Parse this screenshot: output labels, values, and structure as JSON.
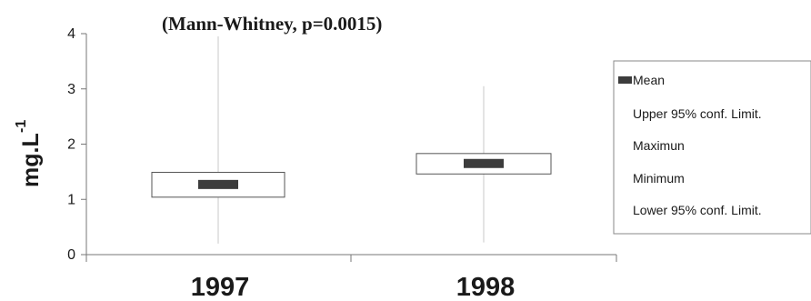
{
  "chart_data": {
    "type": "box",
    "title": "(Mann-Whitney, p=0.0015)",
    "ylabel": "mg.L",
    "ylabel_exponent": "-1",
    "ylim": [
      0,
      4
    ],
    "yticks": [
      "0",
      "1",
      "2",
      "3",
      "4"
    ],
    "categories": [
      "1997",
      "1998"
    ],
    "boxes": [
      {
        "category": "1997",
        "mean": 1.27,
        "upper95": 1.49,
        "lower95": 1.04,
        "max": 3.95,
        "min": 0.2
      },
      {
        "category": "1998",
        "mean": 1.65,
        "upper95": 1.83,
        "lower95": 1.46,
        "max": 3.05,
        "min": 0.22
      }
    ],
    "legend": {
      "placement": "right",
      "entries": [
        "Mean",
        "Upper 95% conf. Limit.",
        "Maximun",
        "Minimum",
        "Lower 95% conf. Limit."
      ]
    },
    "colors": {
      "mean_marker": "#3c3c3c",
      "box_border": "#555555",
      "whisker": "#c8c8c8",
      "axis": "#777777"
    },
    "grid": false
  }
}
